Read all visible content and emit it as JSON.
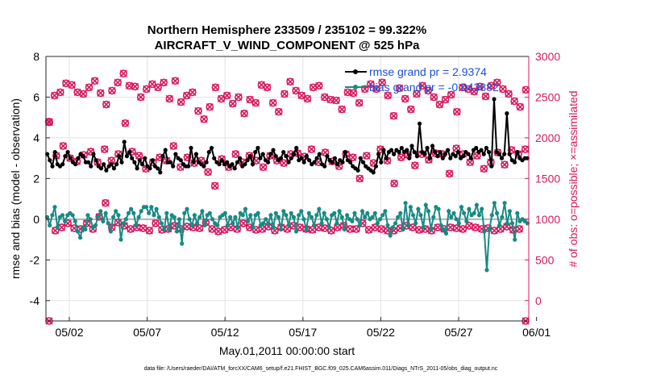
{
  "chart_data": {
    "type": "line",
    "title_line1": "Northern Hemisphere 233509 / 235102 = 99.322%",
    "title_line2": "AIRCRAFT_V_WIND_COMPONENT @ 525 hPa",
    "xlabel": "May.01,2011 00:00:00 start",
    "ylabel_left": "rmse and bias (model - observation)",
    "ylabel_right": "# of obs: o=possible; ×=assimilated",
    "footnote": "data file: /Users/raeder/DAI/ATM_forcXX/CAM6_setup/f.e21.FHIST_BGC.f09_025.CAM6assim.011/Diags_NTrS_2011-05/obs_diag_output.nc",
    "xlim": [
      0.5,
      31.5
    ],
    "ylim_left": [
      -5,
      8
    ],
    "ylim_right": [
      -250,
      3000
    ],
    "x_ticks": [
      2,
      7,
      12,
      17,
      22,
      27,
      32
    ],
    "x_tick_labels": [
      "05/02",
      "05/07",
      "05/12",
      "05/17",
      "05/22",
      "05/27",
      "06/01"
    ],
    "y_ticks_left": [
      -4,
      -2,
      0,
      2,
      4,
      6,
      8
    ],
    "y_ticks_right": [
      0,
      500,
      1000,
      1500,
      2000,
      2500,
      3000
    ],
    "legend": [
      "rmse grand pr = 2.9374",
      "bias grand pr = -0.043882"
    ],
    "colors": {
      "rmse": "#000000",
      "bias": "#178a84",
      "count": "#d6195e",
      "zero": "#b4b4b4"
    },
    "series": {
      "rmse": [
        3.2,
        2.9,
        2.6,
        3.3,
        2.7,
        2.6,
        2.7,
        3.1,
        3.3,
        3.0,
        2.8,
        2.7,
        3.0,
        3.2,
        3.1,
        2.8,
        2.8,
        2.6,
        3.2,
        2.9,
        2.6,
        2.5,
        2.7,
        2.4,
        2.6,
        2.7,
        2.5,
        2.7,
        3.1,
        2.8,
        3.8,
        3.1,
        3.3,
        3.0,
        2.8,
        2.5,
        2.9,
        2.7,
        3.0,
        2.6,
        2.5,
        2.9,
        2.6,
        2.5,
        2.3,
        3.1,
        3.4,
        2.8,
        2.8,
        2.6,
        3.2,
        3.0,
        2.9,
        2.7,
        2.6,
        2.6,
        3.5,
        2.8,
        3.2,
        2.8,
        2.7,
        2.6,
        2.8,
        3.3,
        3.5,
        3.0,
        2.8,
        2.7,
        2.9,
        2.7,
        2.8,
        2.6,
        2.7,
        2.5,
        2.8,
        3.0,
        2.6,
        2.7,
        2.9,
        3.1,
        2.7,
        3.3,
        3.5,
        3.0,
        3.2,
        2.9,
        2.8,
        3.2,
        3.4,
        3.1,
        2.9,
        3.0,
        3.3,
        3.1,
        2.8,
        3.0,
        3.2,
        3.5,
        2.9,
        3.0,
        2.8,
        3.1,
        2.9,
        2.7,
        2.8,
        3.0,
        3.2,
        2.7,
        2.6,
        3.1,
        2.9,
        2.8,
        3.0,
        2.7,
        2.9,
        2.8,
        3.3,
        2.9,
        2.8,
        2.6,
        2.5,
        2.4,
        3.0,
        2.8,
        2.6,
        2.5,
        2.4,
        2.3,
        2.6,
        3.2,
        2.8,
        3.4,
        3.0,
        3.3,
        3.4,
        3.2,
        3.4,
        3.3,
        3.5,
        3.3,
        3.4,
        3.0,
        3.6,
        3.3,
        3.1,
        4.7,
        3.3,
        3.2,
        3.5,
        3.0,
        3.6,
        3.3,
        3.1,
        3.3,
        3.0,
        3.2,
        3.4,
        3.0,
        3.2,
        3.1,
        3.3,
        3.0,
        3.1,
        3.3,
        3.2,
        3.0,
        3.4,
        3.5,
        3.3,
        3.4,
        3.2,
        3.5,
        3.3,
        2.6,
        5.9,
        3.3,
        3.2,
        3.0,
        3.2,
        5.2,
        3.2,
        2.9,
        2.8,
        3.3,
        3.0,
        2.9,
        3.0,
        3.0
      ],
      "bias": [
        0.1,
        -0.3,
        0.2,
        0.6,
        -0.4,
        0.1,
        0.2,
        -0.1,
        0.2,
        0.3,
        0.2,
        -0.1,
        -0.6,
        -0.9,
        -0.4,
        -0.5,
        0.2,
        0.0,
        -0.4,
        -0.3,
        0.1,
        0.4,
        -0.1,
        0.3,
        -0.2,
        -0.6,
        0.1,
        0.4,
        0.2,
        -1.0,
        -0.2,
        0.0,
        0.3,
        0.5,
        0.3,
        -0.3,
        0.1,
        0.4,
        0.6,
        0.6,
        0.3,
        0.6,
        0.2,
        0.5,
        0.1,
        -0.2,
        -0.5,
        0.3,
        -0.5,
        0.2,
        0.1,
        -0.6,
        0.0,
        -1.2,
        0.3,
        0.5,
        0.0,
        -0.3,
        0.2,
        -0.2,
        0.1,
        0.4,
        -0.3,
        0.2,
        0.3,
        0.0,
        -0.2,
        -0.3,
        0.1,
        0.2,
        0.3,
        -0.3,
        0.1,
        -0.2,
        0.1,
        -0.4,
        0.3,
        0.2,
        0.5,
        -0.1,
        0.2,
        -0.4,
        0.2,
        0.3,
        -0.3,
        -0.2,
        0.0,
        -0.2,
        0.2,
        -0.4,
        0.3,
        0.1,
        -0.5,
        0.4,
        0.2,
        -0.3,
        0.3,
        0.1,
        -0.6,
        0.2,
        0.4,
        0.0,
        -0.5,
        0.3,
        0.1,
        -0.3,
        0.2,
        0.5,
        -0.2,
        0.3,
        0.0,
        -0.4,
        0.2,
        0.3,
        -0.2,
        0.4,
        0.1,
        -0.5,
        0.2,
        0.0,
        -0.1,
        0.3,
        0.0,
        -0.3,
        0.4,
        0.1,
        0.3,
        0.0,
        0.1,
        0.3,
        -0.2,
        0.0,
        0.2,
        0.4,
        -0.3,
        -0.8,
        -0.4,
        -0.2,
        0.1,
        0.3,
        -0.5,
        0.8,
        -0.3,
        0.6,
        0.2,
        -0.2,
        0.5,
        0.2,
        -0.4,
        0.7,
        0.4,
        -0.5,
        0.1,
        0.6,
        0.5,
        -0.3,
        -0.5,
        -0.7,
        0.4,
        0.1,
        0.3,
        0.0,
        -0.2,
        0.6,
        0.3,
        -0.1,
        0.5,
        0.2,
        0.3,
        0.7,
        0.2,
        0.5,
        -0.6,
        -2.5,
        -0.5,
        0.2,
        0.8,
        0.3,
        -0.3,
        0.1,
        0.8,
        -0.2,
        0.4,
        -0.2,
        -1.0,
        0.3,
        -0.1,
        0.0,
        -0.1,
        -0.2
      ],
      "possible_hi": [
        2200,
        2520,
        2560,
        2670,
        2650,
        2560,
        2540,
        2620,
        2700,
        2550,
        2410,
        2580,
        2680,
        2790,
        2640,
        2630,
        2500,
        2600,
        2660,
        2620,
        2680,
        2480,
        2700,
        2440,
        2520,
        2560,
        2330,
        2230,
        2380,
        2620,
        2480,
        2520,
        2420,
        2500,
        2300,
        2470,
        2430,
        2650,
        2620,
        2430,
        2320,
        2540,
        2690,
        2580,
        2520,
        2480,
        2620,
        2640,
        2500,
        2470,
        2460,
        2350,
        2560,
        2550,
        2430,
        2600,
        2660,
        2600,
        2680,
        2520,
        2270,
        2610,
        2480,
        2350,
        2540,
        2640,
        2580,
        2500,
        2410,
        2470,
        2530,
        2320,
        2620,
        2600,
        2570,
        2630,
        2510,
        2640,
        2680,
        2600,
        2540,
        2450,
        2380,
        2590
      ],
      "possible_lo": [
        -250,
        860,
        900,
        950,
        890,
        880,
        950,
        880,
        1030,
        1200,
        900,
        960,
        920,
        880,
        900,
        890,
        860,
        950,
        870,
        880,
        920,
        880,
        910,
        900,
        890,
        960,
        880,
        850,
        870,
        900,
        880,
        950,
        900,
        870,
        880,
        910,
        860,
        900,
        880,
        920,
        900,
        880,
        870,
        900,
        890,
        860,
        900,
        920,
        880,
        880,
        950,
        870,
        900,
        880,
        860,
        860,
        890,
        920,
        900,
        870,
        880,
        860,
        900,
        880,
        900,
        890,
        880,
        920,
        900,
        880,
        890,
        860,
        880,
        910,
        870,
        880,
        -250
      ],
      "assimilated_mid": [
        2190,
        1780,
        1900,
        1750,
        1710,
        1790,
        1830,
        1700,
        1860,
        1720,
        1800,
        2180,
        1830,
        1780,
        1620,
        1700,
        1760,
        1720,
        1900,
        1640,
        1760,
        1690,
        1720,
        1580,
        1410,
        1740,
        1640,
        1800,
        1700,
        1780,
        1720,
        1640,
        1780,
        1720,
        1690,
        1800,
        1810,
        1770,
        1860,
        1700,
        1820,
        1710,
        1650,
        1800,
        1760,
        1500,
        1780,
        1690,
        1860,
        1720,
        1440,
        1760,
        1790,
        1660,
        1800,
        1730,
        1810,
        1800,
        1560,
        1870,
        1800,
        1700,
        1780,
        1620,
        1700,
        1820,
        1670,
        1850,
        1800,
        1860
      ]
    }
  }
}
